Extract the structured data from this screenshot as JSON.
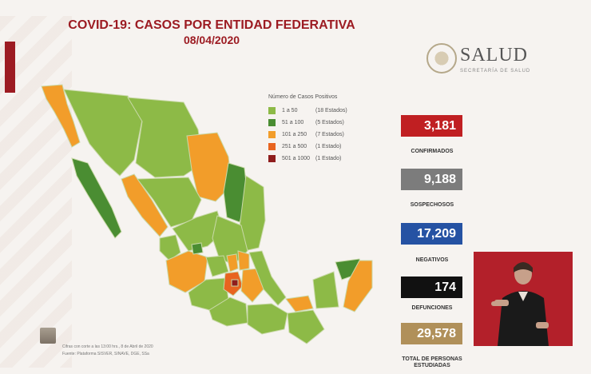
{
  "header": {
    "title": "COVID-19: CASOS POR ENTIDAD FEDERATIVA",
    "date": "08/04/2020"
  },
  "logo": {
    "name": "SALUD",
    "subtitle": "SECRETARÍA DE SALUD"
  },
  "legend": {
    "title": "Número de Casos Positivos",
    "items": [
      {
        "range": "1 a 50",
        "count": "(18 Estados)",
        "color": "#8dba47"
      },
      {
        "range": "51 a 100",
        "count": "(5 Estados)",
        "color": "#4a8d32"
      },
      {
        "range": "101 a 250",
        "count": "(7 Estados)",
        "color": "#f29d2a"
      },
      {
        "range": "251 a 500",
        "count": "(1 Estado)",
        "color": "#e8641f"
      },
      {
        "range": "501 a 1000",
        "count": "(1 Estado)",
        "color": "#8f1d1d"
      }
    ]
  },
  "stats": [
    {
      "value": "3,181",
      "label": "CONFIRMADOS",
      "color": "#c01f22"
    },
    {
      "value": "9,188",
      "label": "SOSPECHOSOS",
      "color": "#7c7c7c"
    },
    {
      "value": "17,209",
      "label": "NEGATIVOS",
      "color": "#2552a3"
    },
    {
      "value": "174",
      "label": "DEFUNCIONES",
      "color": "#111111"
    },
    {
      "value": "29,578",
      "label": "TOTAL DE PERSONAS ESTUDIADAS",
      "color": "#b0905a"
    }
  ],
  "footer": {
    "line1": "Cifras con corte a las 13:00 hrs., 8 de Abril de 2020",
    "line2": "Fuente: Plataforma SISVER, SINAVE, DGE, SSa"
  }
}
